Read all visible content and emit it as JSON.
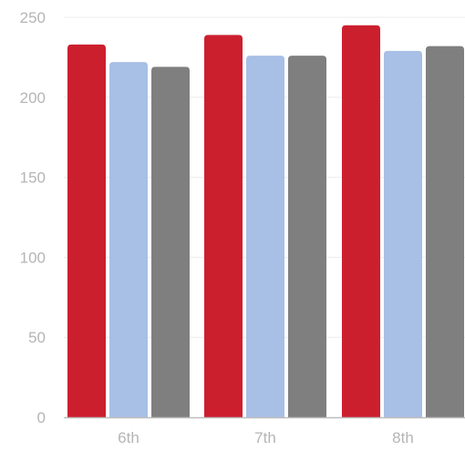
{
  "chart_data": {
    "type": "bar",
    "title": "",
    "xlabel": "",
    "ylabel": "",
    "categories": [
      "6th",
      "7th",
      "8th"
    ],
    "series": [
      {
        "color": "#cc1f2e",
        "values": [
          233,
          239,
          245
        ]
      },
      {
        "color": "#a8bfe6",
        "values": [
          222,
          226,
          229
        ]
      },
      {
        "color": "#7f7f7f",
        "values": [
          219,
          226,
          232
        ]
      }
    ],
    "ylim": [
      0,
      250
    ],
    "yticks": [
      0,
      50,
      100,
      150,
      200,
      250
    ],
    "grid": true,
    "legend": "none"
  }
}
